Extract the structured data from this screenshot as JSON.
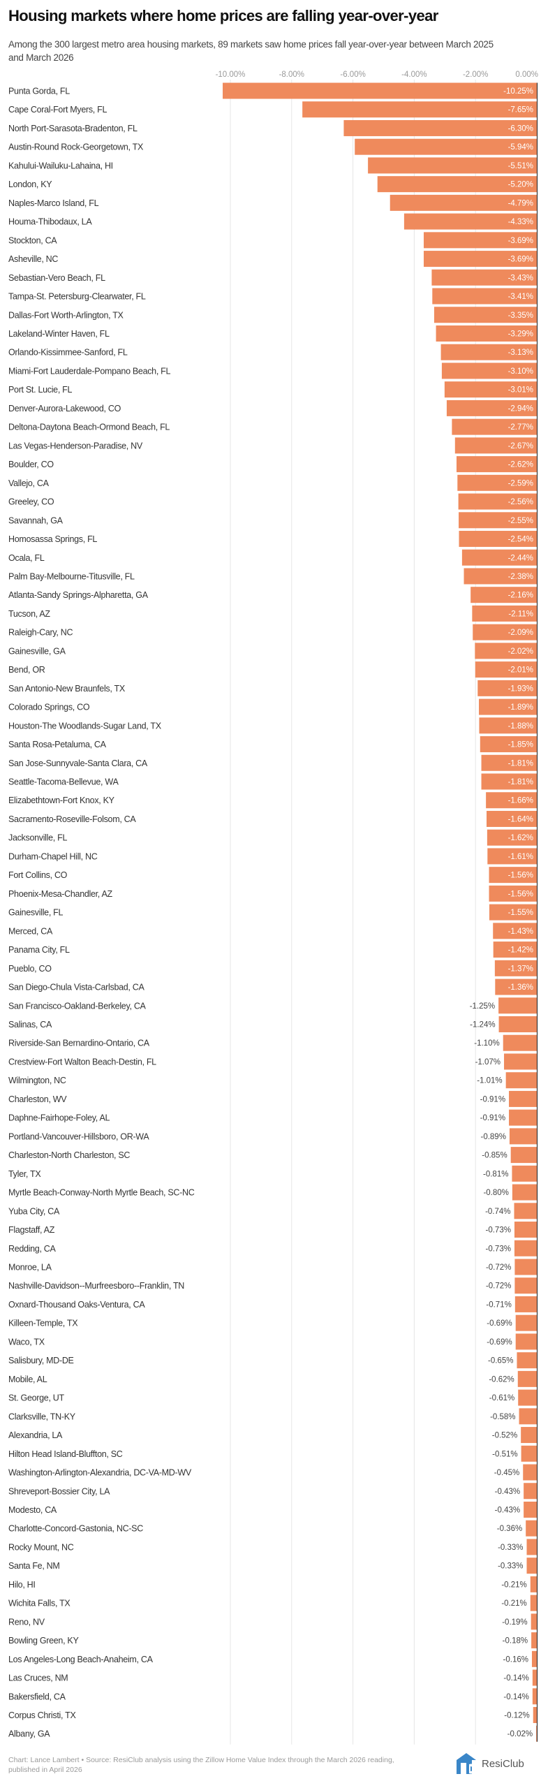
{
  "title": "Housing markets where home prices are falling year-over-year",
  "subtitle": "Among the 300 largest metro area housing markets, 89 markets saw home prices fall year-over-year between March 2025 and March 2026",
  "footer": "Chart: Lance Lambert • Source: ResiClub analysis using the Zillow Home Value Index through the March 2026 reading, published in April 2026",
  "logo": {
    "text": "ResiClub",
    "icon": "resiclub-logo-icon",
    "color": "#3a86c8"
  },
  "colors": {
    "bar": "#ef8a5c",
    "grid": "#e6e6e6",
    "axis": "#333333"
  },
  "chart_data": {
    "type": "bar",
    "orientation": "horizontal",
    "title": "Housing markets where home prices are falling year-over-year",
    "xlim": [
      -10.25,
      0
    ],
    "xticks": [
      "-10.00%",
      "-8.00%",
      "-6.00%",
      "-4.00%",
      "-2.00%",
      "0.00%"
    ],
    "xtick_values": [
      -10,
      -8,
      -6,
      -4,
      -2,
      0
    ],
    "xaxis_position": "top",
    "grid": true,
    "categories": [
      "Punta Gorda, FL",
      "Cape Coral-Fort Myers, FL",
      "North Port-Sarasota-Bradenton, FL",
      "Austin-Round Rock-Georgetown, TX",
      "Kahului-Wailuku-Lahaina, HI",
      "London, KY",
      "Naples-Marco Island, FL",
      "Houma-Thibodaux, LA",
      "Stockton, CA",
      "Asheville, NC",
      "Sebastian-Vero Beach, FL",
      "Tampa-St. Petersburg-Clearwater, FL",
      "Dallas-Fort Worth-Arlington, TX",
      "Lakeland-Winter Haven, FL",
      "Orlando-Kissimmee-Sanford, FL",
      "Miami-Fort Lauderdale-Pompano Beach, FL",
      "Port St. Lucie, FL",
      "Denver-Aurora-Lakewood, CO",
      "Deltona-Daytona Beach-Ormond Beach, FL",
      "Las Vegas-Henderson-Paradise, NV",
      "Boulder, CO",
      "Vallejo, CA",
      "Greeley, CO",
      "Savannah, GA",
      "Homosassa Springs, FL",
      "Ocala, FL",
      "Palm Bay-Melbourne-Titusville, FL",
      "Atlanta-Sandy Springs-Alpharetta, GA",
      "Tucson, AZ",
      "Raleigh-Cary, NC",
      "Gainesville, GA",
      "Bend, OR",
      "San Antonio-New Braunfels, TX",
      "Colorado Springs, CO",
      "Houston-The Woodlands-Sugar Land, TX",
      "Santa Rosa-Petaluma, CA",
      "San Jose-Sunnyvale-Santa Clara, CA",
      "Seattle-Tacoma-Bellevue, WA",
      "Elizabethtown-Fort Knox, KY",
      "Sacramento-Roseville-Folsom, CA",
      "Jacksonville, FL",
      "Durham-Chapel Hill, NC",
      "Fort Collins, CO",
      "Phoenix-Mesa-Chandler, AZ",
      "Gainesville, FL",
      "Merced, CA",
      "Panama City, FL",
      "Pueblo, CO",
      "San Diego-Chula Vista-Carlsbad, CA",
      "San Francisco-Oakland-Berkeley, CA",
      "Salinas, CA",
      "Riverside-San Bernardino-Ontario, CA",
      "Crestview-Fort Walton Beach-Destin, FL",
      "Wilmington, NC",
      "Charleston, WV",
      "Daphne-Fairhope-Foley, AL",
      "Portland-Vancouver-Hillsboro, OR-WA",
      "Charleston-North Charleston, SC",
      "Tyler, TX",
      "Myrtle Beach-Conway-North Myrtle Beach, SC-NC",
      "Yuba City, CA",
      "Flagstaff, AZ",
      "Redding, CA",
      "Monroe, LA",
      "Nashville-Davidson--Murfreesboro--Franklin, TN",
      "Oxnard-Thousand Oaks-Ventura, CA",
      "Killeen-Temple, TX",
      "Waco, TX",
      "Salisbury, MD-DE",
      "Mobile, AL",
      "St. George, UT",
      "Clarksville, TN-KY",
      "Alexandria, LA",
      "Hilton Head Island-Bluffton, SC",
      "Washington-Arlington-Alexandria, DC-VA-MD-WV",
      "Shreveport-Bossier City, LA",
      "Modesto, CA",
      "Charlotte-Concord-Gastonia, NC-SC",
      "Rocky Mount, NC",
      "Santa Fe, NM",
      "Hilo, HI",
      "Wichita Falls, TX",
      "Reno, NV",
      "Bowling Green, KY",
      "Los Angeles-Long Beach-Anaheim, CA",
      "Las Cruces, NM",
      "Bakersfield, CA",
      "Corpus Christi, TX",
      "Albany, GA"
    ],
    "values": [
      -10.25,
      -7.65,
      -6.3,
      -5.94,
      -5.51,
      -5.2,
      -4.79,
      -4.33,
      -3.69,
      -3.69,
      -3.43,
      -3.41,
      -3.35,
      -3.29,
      -3.13,
      -3.1,
      -3.01,
      -2.94,
      -2.77,
      -2.67,
      -2.62,
      -2.59,
      -2.56,
      -2.55,
      -2.54,
      -2.44,
      -2.38,
      -2.16,
      -2.11,
      -2.09,
      -2.02,
      -2.01,
      -1.93,
      -1.89,
      -1.88,
      -1.85,
      -1.81,
      -1.81,
      -1.66,
      -1.64,
      -1.62,
      -1.61,
      -1.56,
      -1.56,
      -1.55,
      -1.43,
      -1.42,
      -1.37,
      -1.36,
      -1.25,
      -1.24,
      -1.1,
      -1.07,
      -1.01,
      -0.91,
      -0.91,
      -0.89,
      -0.85,
      -0.81,
      -0.8,
      -0.74,
      -0.73,
      -0.73,
      -0.72,
      -0.72,
      -0.71,
      -0.69,
      -0.69,
      -0.65,
      -0.62,
      -0.61,
      -0.58,
      -0.52,
      -0.51,
      -0.45,
      -0.43,
      -0.43,
      -0.36,
      -0.33,
      -0.33,
      -0.21,
      -0.21,
      -0.19,
      -0.18,
      -0.16,
      -0.14,
      -0.14,
      -0.12,
      -0.02
    ],
    "value_labels": [
      "-10.25%",
      "-7.65%",
      "-6.30%",
      "-5.94%",
      "-5.51%",
      "-5.20%",
      "-4.79%",
      "-4.33%",
      "-3.69%",
      "-3.69%",
      "-3.43%",
      "-3.41%",
      "-3.35%",
      "-3.29%",
      "-3.13%",
      "-3.10%",
      "-3.01%",
      "-2.94%",
      "-2.77%",
      "-2.67%",
      "-2.62%",
      "-2.59%",
      "-2.56%",
      "-2.55%",
      "-2.54%",
      "-2.44%",
      "-2.38%",
      "-2.16%",
      "-2.11%",
      "-2.09%",
      "-2.02%",
      "-2.01%",
      "-1.93%",
      "-1.89%",
      "-1.88%",
      "-1.85%",
      "-1.81%",
      "-1.81%",
      "-1.66%",
      "-1.64%",
      "-1.62%",
      "-1.61%",
      "-1.56%",
      "-1.56%",
      "-1.55%",
      "-1.43%",
      "-1.42%",
      "-1.37%",
      "-1.36%",
      "-1.25%",
      "-1.24%",
      "-1.10%",
      "-1.07%",
      "-1.01%",
      "-0.91%",
      "-0.91%",
      "-0.89%",
      "-0.85%",
      "-0.81%",
      "-0.80%",
      "-0.74%",
      "-0.73%",
      "-0.73%",
      "-0.72%",
      "-0.72%",
      "-0.71%",
      "-0.69%",
      "-0.69%",
      "-0.65%",
      "-0.62%",
      "-0.61%",
      "-0.58%",
      "-0.52%",
      "-0.51%",
      "-0.45%",
      "-0.43%",
      "-0.43%",
      "-0.36%",
      "-0.33%",
      "-0.33%",
      "-0.21%",
      "-0.21%",
      "-0.19%",
      "-0.18%",
      "-0.16%",
      "-0.14%",
      "-0.14%",
      "-0.12%",
      "-0.02%"
    ]
  }
}
